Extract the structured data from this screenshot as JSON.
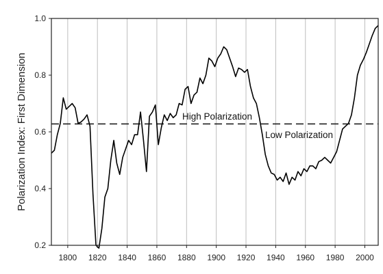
{
  "chart_data": {
    "type": "line",
    "title": "",
    "xlabel": "",
    "ylabel": "Polarization Index: First Dimension",
    "xlim": [
      1789,
      2009
    ],
    "ylim": [
      0.2,
      1.0
    ],
    "x_ticks": [
      1800,
      1820,
      1840,
      1860,
      1880,
      1900,
      1920,
      1940,
      1960,
      1980,
      2000
    ],
    "y_ticks": [
      0.2,
      0.4,
      0.6,
      0.8,
      1.0
    ],
    "x_tick_labels": [
      "1800",
      "1820",
      "1840",
      "1860",
      "1880",
      "1900",
      "1920",
      "1940",
      "1960",
      "1980",
      "2000"
    ],
    "y_tick_labels": [
      "0.2",
      "0.4",
      "0.6",
      "0.8",
      "1.0"
    ],
    "grid": "vertical",
    "threshold": 0.628,
    "annotations": {
      "high": "High Polarization",
      "low": "Low Polarization"
    },
    "series": [
      {
        "x": [
          1789,
          1791,
          1793,
          1795,
          1797,
          1799,
          1801,
          1803,
          1805,
          1807,
          1809,
          1811,
          1813,
          1815,
          1817,
          1819,
          1821,
          1823,
          1825,
          1827,
          1829,
          1831,
          1833,
          1835,
          1837,
          1839,
          1841,
          1843,
          1845,
          1847,
          1849,
          1851,
          1853,
          1855,
          1857,
          1859,
          1861,
          1863,
          1865,
          1867,
          1869,
          1871,
          1873,
          1875,
          1877,
          1879,
          1881,
          1883,
          1885,
          1887,
          1889,
          1891,
          1893,
          1895,
          1897,
          1899,
          1901,
          1903,
          1905,
          1907,
          1909,
          1911,
          1913,
          1915,
          1917,
          1919,
          1921,
          1923,
          1925,
          1927,
          1929,
          1931,
          1933,
          1935,
          1937,
          1939,
          1941,
          1943,
          1945,
          1947,
          1949,
          1951,
          1953,
          1955,
          1957,
          1959,
          1961,
          1963,
          1965,
          1967,
          1969,
          1971,
          1973,
          1975,
          1977,
          1979,
          1981,
          1983,
          1985,
          1987,
          1989,
          1991,
          1993,
          1995,
          1997,
          1999,
          2001,
          2003,
          2005,
          2007,
          2009
        ],
        "y": [
          0.525,
          0.535,
          0.59,
          0.63,
          0.72,
          0.68,
          0.69,
          0.7,
          0.685,
          0.63,
          0.635,
          0.645,
          0.66,
          0.62,
          0.38,
          0.2,
          0.19,
          0.26,
          0.37,
          0.4,
          0.5,
          0.57,
          0.49,
          0.45,
          0.51,
          0.54,
          0.57,
          0.555,
          0.59,
          0.59,
          0.67,
          0.57,
          0.46,
          0.655,
          0.67,
          0.695,
          0.555,
          0.615,
          0.66,
          0.64,
          0.665,
          0.65,
          0.66,
          0.7,
          0.695,
          0.75,
          0.76,
          0.7,
          0.73,
          0.74,
          0.79,
          0.77,
          0.8,
          0.86,
          0.85,
          0.83,
          0.86,
          0.875,
          0.9,
          0.89,
          0.86,
          0.83,
          0.795,
          0.825,
          0.82,
          0.81,
          0.82,
          0.76,
          0.72,
          0.7,
          0.65,
          0.59,
          0.52,
          0.48,
          0.455,
          0.45,
          0.43,
          0.44,
          0.425,
          0.455,
          0.415,
          0.44,
          0.43,
          0.46,
          0.445,
          0.47,
          0.46,
          0.48,
          0.48,
          0.47,
          0.495,
          0.5,
          0.51,
          0.5,
          0.49,
          0.51,
          0.53,
          0.57,
          0.61,
          0.62,
          0.63,
          0.66,
          0.72,
          0.8,
          0.835,
          0.855,
          0.88,
          0.91,
          0.94,
          0.965,
          0.975
        ]
      }
    ]
  }
}
